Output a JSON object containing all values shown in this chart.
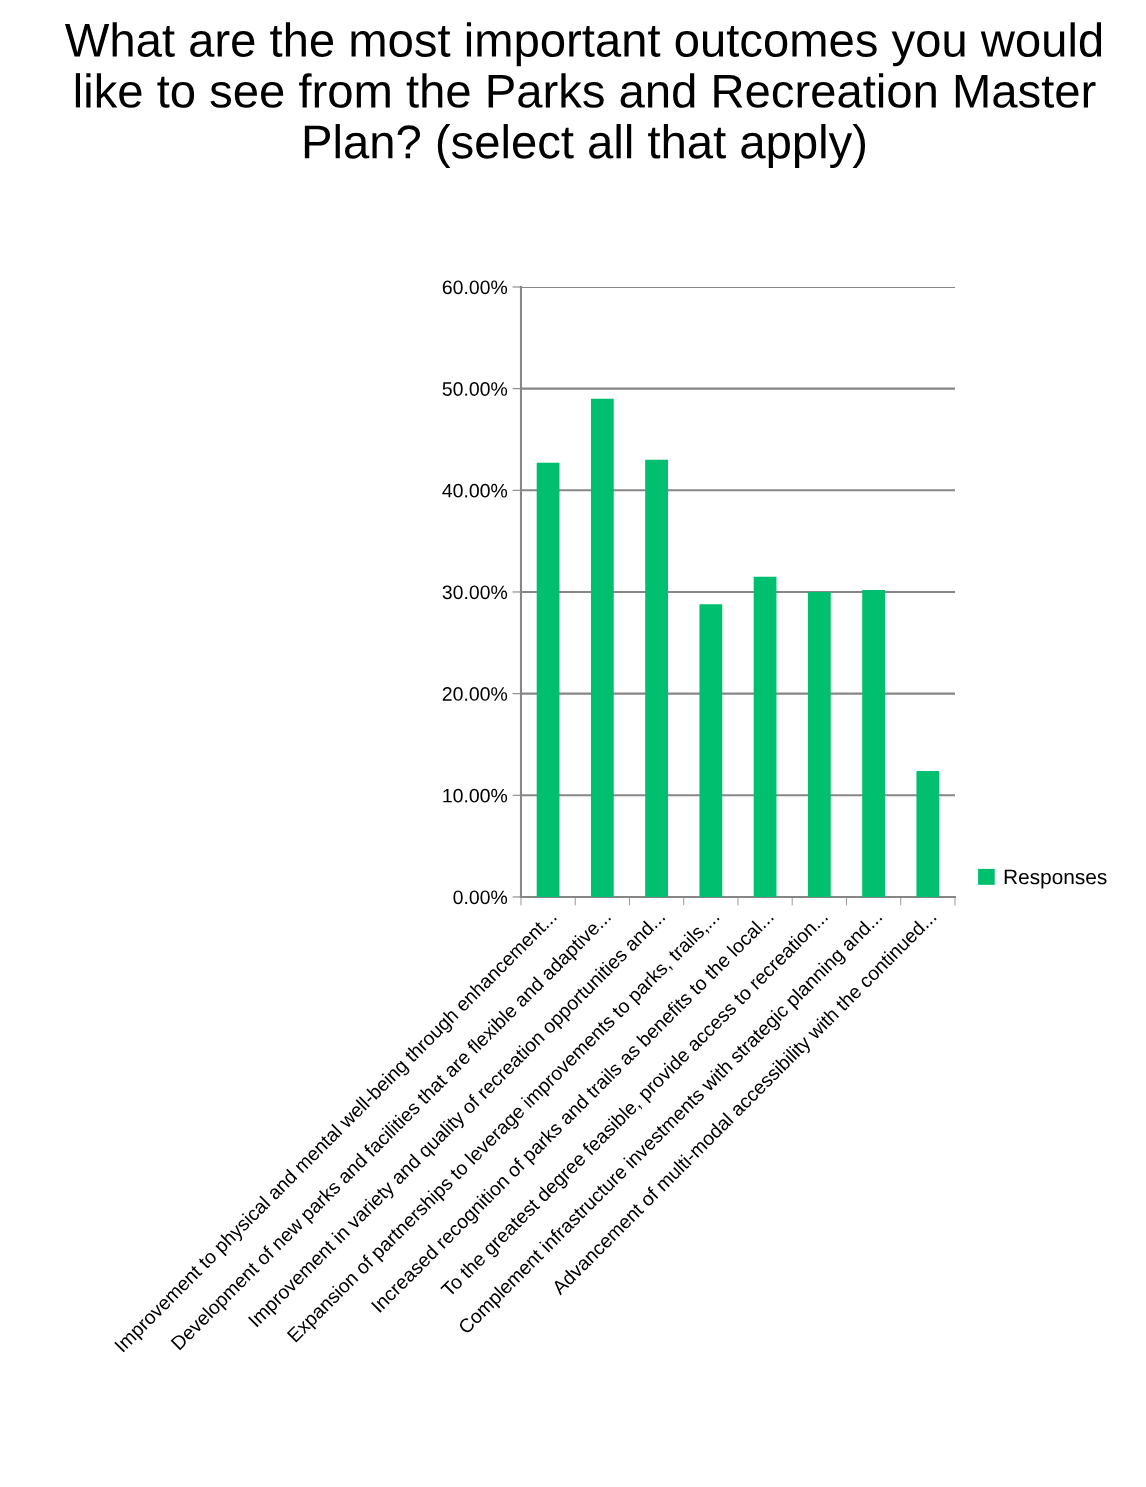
{
  "chart_data": {
    "type": "bar",
    "title": "What are the most important outcomes you would like to see from the Parks and Recreation Master Plan? (select all that apply)",
    "categories": [
      "Improvement to physical and mental well-being through enhancement...",
      "Development of new parks and facilities that are flexible and adaptive...",
      "Improvement in variety and quality of recreation opportunities and...",
      "Expansion of partnerships to leverage improvements to parks, trails,...",
      "Increased recognition of parks and trails as benefits to the local...",
      "To the greatest degree feasible, provide access to recreation...",
      "Complement infrastructure investments with strategic planning and...",
      "Advancement of multi-modal accessibility with the continued..."
    ],
    "series": [
      {
        "name": "Responses",
        "color": "#00bf6f",
        "values": [
          42.7,
          49.0,
          43.0,
          28.8,
          31.5,
          30.0,
          30.2,
          12.4
        ]
      }
    ],
    "ylim": [
      0,
      60
    ],
    "yticks": [
      {
        "value": 0,
        "label": "0.00%"
      },
      {
        "value": 10,
        "label": "10.00%"
      },
      {
        "value": 20,
        "label": "20.00%"
      },
      {
        "value": 30,
        "label": "30.00%"
      },
      {
        "value": 40,
        "label": "40.00%"
      },
      {
        "value": 50,
        "label": "50.00%"
      },
      {
        "value": 60,
        "label": "60.00%"
      }
    ],
    "grid": "y",
    "legend": "right"
  }
}
